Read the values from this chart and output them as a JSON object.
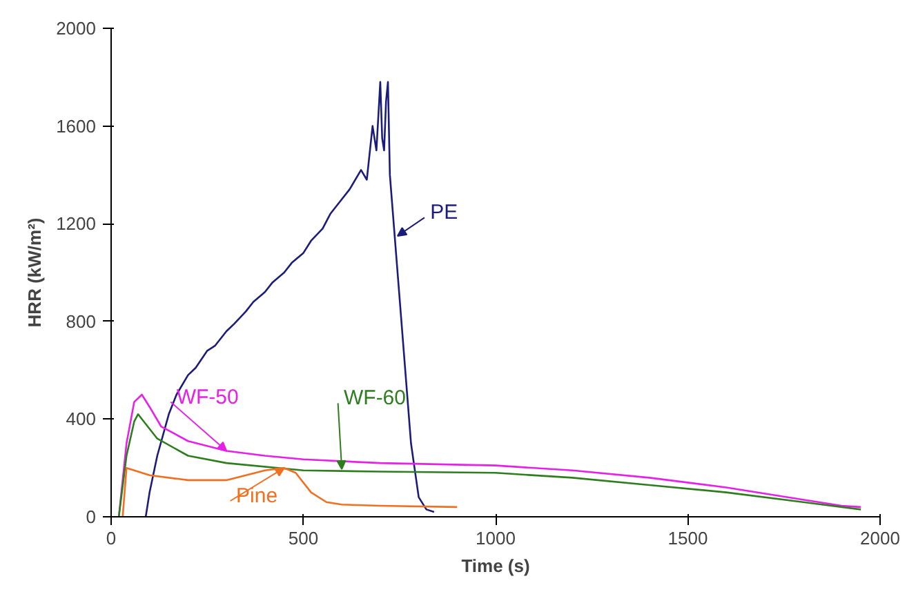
{
  "chart_data": {
    "type": "line",
    "xlabel": "Time (s)",
    "ylabel": "HRR (kW/m²)",
    "xlim": [
      0,
      2000
    ],
    "ylim": [
      0,
      2000
    ],
    "xticks": [
      0,
      500,
      1000,
      1500,
      2000
    ],
    "yticks": [
      0,
      400,
      800,
      1200,
      1600,
      2000
    ],
    "grid": false,
    "marker": "none",
    "line_style": "solid",
    "series": [
      {
        "color": "#1c1c7c",
        "x": [
          90,
          100,
          120,
          150,
          170,
          200,
          220,
          250,
          270,
          300,
          320,
          350,
          370,
          400,
          420,
          450,
          470,
          500,
          520,
          550,
          570,
          600,
          620,
          650,
          665,
          680,
          690,
          700,
          705,
          710,
          715,
          720,
          725,
          730,
          740,
          760,
          780,
          800,
          820,
          840
        ],
        "values": [
          0,
          100,
          250,
          420,
          500,
          580,
          610,
          680,
          700,
          760,
          790,
          840,
          880,
          920,
          960,
          1000,
          1040,
          1080,
          1130,
          1180,
          1240,
          1300,
          1340,
          1420,
          1380,
          1600,
          1500,
          1780,
          1550,
          1500,
          1700,
          1780,
          1400,
          1300,
          1100,
          700,
          300,
          80,
          30,
          20
        ]
      },
      {
        "color": "#e620e6",
        "x": [
          20,
          40,
          60,
          80,
          100,
          130,
          200,
          300,
          400,
          500,
          700,
          1000,
          1200,
          1400,
          1600,
          1800,
          1900,
          1950
        ],
        "values": [
          0,
          300,
          470,
          500,
          450,
          370,
          310,
          270,
          250,
          235,
          220,
          210,
          190,
          160,
          120,
          70,
          45,
          40
        ]
      },
      {
        "color": "#2e7d1e",
        "x": [
          20,
          40,
          60,
          70,
          90,
          120,
          200,
          300,
          500,
          700,
          1000,
          1200,
          1400,
          1600,
          1800,
          1950
        ],
        "values": [
          0,
          250,
          390,
          420,
          380,
          320,
          250,
          220,
          190,
          185,
          180,
          160,
          130,
          100,
          60,
          30
        ]
      },
      {
        "color": "#f07020",
        "x": [
          30,
          40,
          60,
          100,
          200,
          300,
          400,
          450,
          480,
          520,
          560,
          600,
          700,
          900
        ],
        "values": [
          0,
          200,
          190,
          170,
          150,
          150,
          190,
          200,
          180,
          100,
          60,
          50,
          45,
          40
        ]
      }
    ],
    "annotations": [
      {
        "text": "PE",
        "x": 745,
        "y": 1150
      },
      {
        "text": "WF-50",
        "x": 300,
        "y": 270
      },
      {
        "text": "WF-60",
        "x": 600,
        "y": 195
      },
      {
        "text": "Pine",
        "x": 450,
        "y": 200
      }
    ]
  }
}
